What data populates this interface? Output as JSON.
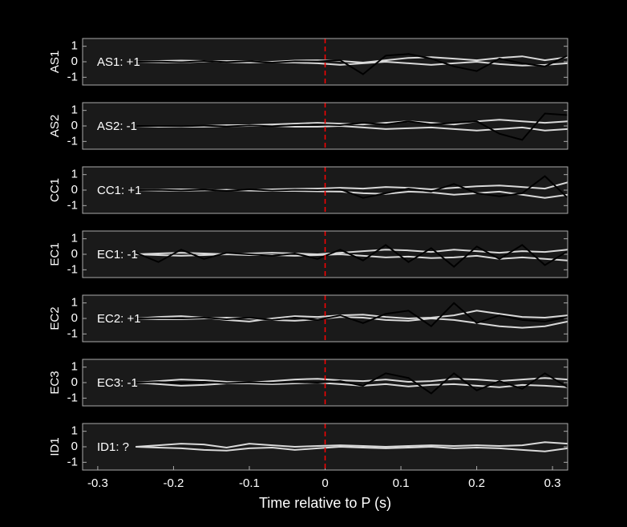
{
  "chart_data": [
    {
      "type": "line",
      "ylabel": "AS1",
      "annotation": {
        "text": "AS1: +1",
        "color": "#c00000"
      },
      "x": [
        -0.25,
        -0.22,
        -0.19,
        -0.16,
        -0.13,
        -0.1,
        -0.07,
        -0.04,
        -0.01,
        0.02,
        0.05,
        0.08,
        0.11,
        0.14,
        0.17,
        0.2,
        0.23,
        0.26,
        0.29,
        0.32
      ],
      "series": [
        {
          "color": "#d9d9d9",
          "values": [
            0,
            0.05,
            0.08,
            0.05,
            -0.02,
            -0.05,
            0,
            0.08,
            0.1,
            0.05,
            -0.05,
            0.1,
            0.25,
            0.3,
            0.2,
            0.1,
            0.25,
            0.35,
            0.1,
            0.3
          ]
        },
        {
          "color": "#d9d9d9",
          "values": [
            0,
            -0.03,
            -0.05,
            0.02,
            0.05,
            0.03,
            -0.03,
            -0.05,
            -0.1,
            -0.2,
            -0.1,
            0,
            -0.1,
            -0.2,
            -0.1,
            0,
            -0.15,
            -0.25,
            -0.2,
            -0.1
          ]
        },
        {
          "color": "#000000",
          "values": [
            0,
            0.02,
            -0.03,
            0.05,
            -0.02,
            0.04,
            -0.05,
            0.03,
            0.02,
            0.1,
            -0.8,
            0.4,
            0.5,
            0.2,
            -0.3,
            -0.6,
            0.2,
            -0.1,
            -0.3,
            0.4
          ]
        }
      ],
      "xlim": [
        -0.32,
        0.32
      ],
      "ylim": [
        -1.5,
        1.5
      ],
      "yticks": [
        -1,
        0,
        1
      ],
      "vline": 0,
      "vline_color": "#ff0000"
    },
    {
      "type": "line",
      "ylabel": "AS2",
      "annotation": {
        "text": "AS2: -1",
        "color": "#0000aa"
      },
      "x": [
        -0.25,
        -0.22,
        -0.19,
        -0.16,
        -0.13,
        -0.1,
        -0.07,
        -0.04,
        -0.01,
        0.02,
        0.05,
        0.08,
        0.11,
        0.14,
        0.17,
        0.2,
        0.23,
        0.26,
        0.29,
        0.32
      ],
      "series": [
        {
          "color": "#d9d9d9",
          "values": [
            0,
            -0.05,
            -0.05,
            0,
            0.05,
            0.05,
            0.1,
            0.15,
            0.2,
            0.15,
            0.1,
            0.2,
            0.3,
            0.2,
            0.1,
            0.3,
            0.4,
            0.3,
            0.2,
            0.3
          ]
        },
        {
          "color": "#d9d9d9",
          "values": [
            0,
            -0.02,
            -0.05,
            -0.05,
            -0.02,
            0,
            0,
            -0.05,
            -0.05,
            0,
            -0.1,
            -0.2,
            -0.15,
            -0.1,
            -0.2,
            -0.3,
            -0.2,
            -0.1,
            -0.3,
            -0.2
          ]
        },
        {
          "color": "#000000",
          "values": [
            0,
            0,
            -0.02,
            0.02,
            -0.03,
            0.03,
            -0.02,
            0.05,
            0.1,
            0.05,
            0.2,
            0.1,
            0.3,
            0.1,
            0.2,
            0.3,
            -0.5,
            -0.9,
            0.8,
            0.7
          ]
        }
      ],
      "xlim": [
        -0.32,
        0.32
      ],
      "ylim": [
        -1.5,
        1.5
      ],
      "yticks": [
        -1,
        0,
        1
      ],
      "vline": 0,
      "vline_color": "#ff0000"
    },
    {
      "type": "line",
      "ylabel": "CC1",
      "annotation": {
        "text": "CC1: +1",
        "color": "#c00000"
      },
      "x": [
        -0.25,
        -0.22,
        -0.19,
        -0.16,
        -0.13,
        -0.1,
        -0.07,
        -0.04,
        -0.01,
        0.02,
        0.05,
        0.08,
        0.11,
        0.14,
        0.17,
        0.2,
        0.23,
        0.26,
        0.29,
        0.32
      ],
      "series": [
        {
          "color": "#d9d9d9",
          "values": [
            0,
            0.03,
            0.05,
            0.02,
            -0.02,
            0,
            0.05,
            0.08,
            0.1,
            0.15,
            0.1,
            0.2,
            0.15,
            0.05,
            0.15,
            0.25,
            0.3,
            0.2,
            0.1,
            0.5
          ]
        },
        {
          "color": "#d9d9d9",
          "values": [
            0,
            -0.03,
            -0.04,
            -0.02,
            0.02,
            -0.03,
            -0.05,
            -0.05,
            -0.08,
            -0.1,
            -0.2,
            -0.25,
            -0.1,
            -0.15,
            -0.3,
            -0.2,
            -0.1,
            -0.3,
            -0.5,
            -0.3
          ]
        },
        {
          "color": "#000000",
          "values": [
            0,
            0.02,
            -0.02,
            0.03,
            -0.05,
            0.05,
            -0.03,
            0.02,
            0,
            0.05,
            -0.5,
            -0.2,
            0.1,
            -0.1,
            0.4,
            -0.2,
            -0.4,
            -0.2,
            0.9,
            -0.5
          ]
        }
      ],
      "xlim": [
        -0.32,
        0.32
      ],
      "ylim": [
        -1.5,
        1.5
      ],
      "yticks": [
        -1,
        0,
        1
      ],
      "vline": 0,
      "vline_color": "#ff0000"
    },
    {
      "type": "line",
      "ylabel": "EC1",
      "annotation": {
        "text": "EC1: -1",
        "color": "#0000aa"
      },
      "x": [
        -0.25,
        -0.22,
        -0.19,
        -0.16,
        -0.13,
        -0.1,
        -0.07,
        -0.04,
        -0.01,
        0.02,
        0.05,
        0.08,
        0.11,
        0.14,
        0.17,
        0.2,
        0.23,
        0.26,
        0.29,
        0.32
      ],
      "series": [
        {
          "color": "#d9d9d9",
          "values": [
            0,
            0.05,
            0.1,
            0.05,
            0,
            0.05,
            0.1,
            0.05,
            0,
            0.1,
            0.2,
            0.3,
            0.25,
            0.15,
            0.3,
            0.2,
            0.1,
            0.2,
            0.15,
            0.3
          ]
        },
        {
          "color": "#d9d9d9",
          "values": [
            0,
            -0.05,
            -0.1,
            -0.05,
            0,
            -0.05,
            -0.05,
            -0.1,
            -0.05,
            0,
            -0.1,
            -0.2,
            -0.15,
            -0.25,
            -0.2,
            -0.1,
            -0.3,
            -0.2,
            -0.3,
            -0.4
          ]
        },
        {
          "color": "#000000",
          "values": [
            0.1,
            -0.5,
            0.3,
            -0.3,
            0.1,
            0,
            -0.1,
            0.05,
            -0.3,
            0.3,
            -0.4,
            0.6,
            -0.5,
            0.4,
            -0.8,
            0.5,
            -0.3,
            0.6,
            -0.7,
            0.2
          ]
        }
      ],
      "xlim": [
        -0.32,
        0.32
      ],
      "ylim": [
        -1.5,
        1.5
      ],
      "yticks": [
        -1,
        0,
        1
      ],
      "vline": 0,
      "vline_color": "#ff0000"
    },
    {
      "type": "line",
      "ylabel": "EC2",
      "annotation": {
        "text": "EC2: +1",
        "color": "#c00000"
      },
      "x": [
        -0.25,
        -0.22,
        -0.19,
        -0.16,
        -0.13,
        -0.1,
        -0.07,
        -0.04,
        -0.01,
        0.02,
        0.05,
        0.08,
        0.11,
        0.14,
        0.17,
        0.2,
        0.23,
        0.26,
        0.29,
        0.32
      ],
      "series": [
        {
          "color": "#d9d9d9",
          "values": [
            0,
            0.1,
            0.15,
            0.05,
            -0.1,
            -0.2,
            0,
            0.15,
            0.1,
            0.2,
            0.25,
            0.1,
            0,
            0.05,
            0.2,
            0.5,
            0.3,
            0.1,
            0.05,
            0.2
          ]
        },
        {
          "color": "#d9d9d9",
          "values": [
            0,
            -0.05,
            -0.05,
            0,
            0.05,
            0,
            -0.1,
            -0.15,
            -0.05,
            0.1,
            0.05,
            -0.1,
            -0.15,
            0,
            -0.1,
            -0.3,
            -0.5,
            -0.6,
            -0.5,
            -0.2
          ]
        },
        {
          "color": "#000000",
          "values": [
            0,
            0.02,
            0,
            0.05,
            -0.05,
            0.05,
            -0.1,
            0.05,
            -0.1,
            0.2,
            -0.3,
            0.3,
            0.5,
            -0.5,
            1,
            -0.3,
            0.2,
            -0.1,
            -0.2,
            0.1
          ]
        }
      ],
      "xlim": [
        -0.32,
        0.32
      ],
      "ylim": [
        -1.5,
        1.5
      ],
      "yticks": [
        -1,
        0,
        1
      ],
      "vline": 0,
      "vline_color": "#ff0000"
    },
    {
      "type": "line",
      "ylabel": "EC3",
      "annotation": {
        "text": "EC3: -1",
        "color": "#0000aa"
      },
      "x": [
        -0.25,
        -0.22,
        -0.19,
        -0.16,
        -0.13,
        -0.1,
        -0.07,
        -0.04,
        -0.01,
        0.02,
        0.05,
        0.08,
        0.11,
        0.14,
        0.17,
        0.2,
        0.23,
        0.26,
        0.29,
        0.32
      ],
      "series": [
        {
          "color": "#d9d9d9",
          "values": [
            0,
            0.1,
            0.2,
            0.15,
            0.05,
            0,
            0.1,
            0.2,
            0.25,
            0.15,
            0.1,
            0.2,
            0.05,
            0.1,
            0.25,
            0.2,
            0.1,
            0.2,
            0.3,
            0.2
          ]
        },
        {
          "color": "#d9d9d9",
          "values": [
            0,
            -0.1,
            -0.2,
            -0.15,
            -0.05,
            -0.05,
            -0.1,
            -0.05,
            0,
            -0.1,
            -0.2,
            -0.1,
            -0.25,
            -0.15,
            -0.1,
            -0.2,
            -0.3,
            -0.15,
            -0.2,
            -0.3
          ]
        },
        {
          "color": "#000000",
          "values": [
            0,
            0.03,
            -0.02,
            0.05,
            -0.03,
            0.02,
            -0.02,
            0.03,
            0,
            0.1,
            -0.2,
            0.6,
            0.3,
            -0.7,
            0.6,
            -0.5,
            0.1,
            -0.4,
            0.6,
            -0.3
          ]
        }
      ],
      "xlim": [
        -0.32,
        0.32
      ],
      "ylim": [
        -1.5,
        1.5
      ],
      "yticks": [
        -1,
        0,
        1
      ],
      "vline": 0,
      "vline_color": "#ff0000"
    },
    {
      "type": "line",
      "ylabel": "ID1",
      "annotation": {
        "text": "ID1: ?",
        "color": "#999999"
      },
      "x": [
        -0.25,
        -0.22,
        -0.19,
        -0.16,
        -0.13,
        -0.1,
        -0.07,
        -0.04,
        -0.01,
        0.02,
        0.05,
        0.08,
        0.11,
        0.14,
        0.17,
        0.2,
        0.23,
        0.26,
        0.29,
        0.32
      ],
      "series": [
        {
          "color": "#d9d9d9",
          "values": [
            0,
            0.1,
            0.2,
            0.15,
            -0.05,
            0.2,
            0.1,
            0,
            0.05,
            0.1,
            0.05,
            0,
            0.05,
            0.1,
            0.05,
            0.1,
            0.05,
            0.1,
            0.3,
            0.2
          ]
        },
        {
          "color": "#d9d9d9",
          "values": [
            0,
            -0.05,
            -0.1,
            -0.2,
            -0.25,
            -0.1,
            -0.05,
            -0.2,
            -0.1,
            0,
            -0.05,
            -0.1,
            -0.05,
            0,
            -0.1,
            -0.05,
            -0.1,
            -0.2,
            -0.3,
            -0.1
          ]
        }
      ],
      "xlim": [
        -0.32,
        0.32
      ],
      "ylim": [
        -1.5,
        1.5
      ],
      "yticks": [
        -1,
        0,
        1
      ],
      "vline": 0,
      "vline_color": "#ff0000",
      "xticks": [
        -0.3,
        -0.2,
        -0.1,
        0,
        0.1,
        0.2,
        0.3
      ],
      "xlabel": "Time relative to P (s)"
    }
  ]
}
